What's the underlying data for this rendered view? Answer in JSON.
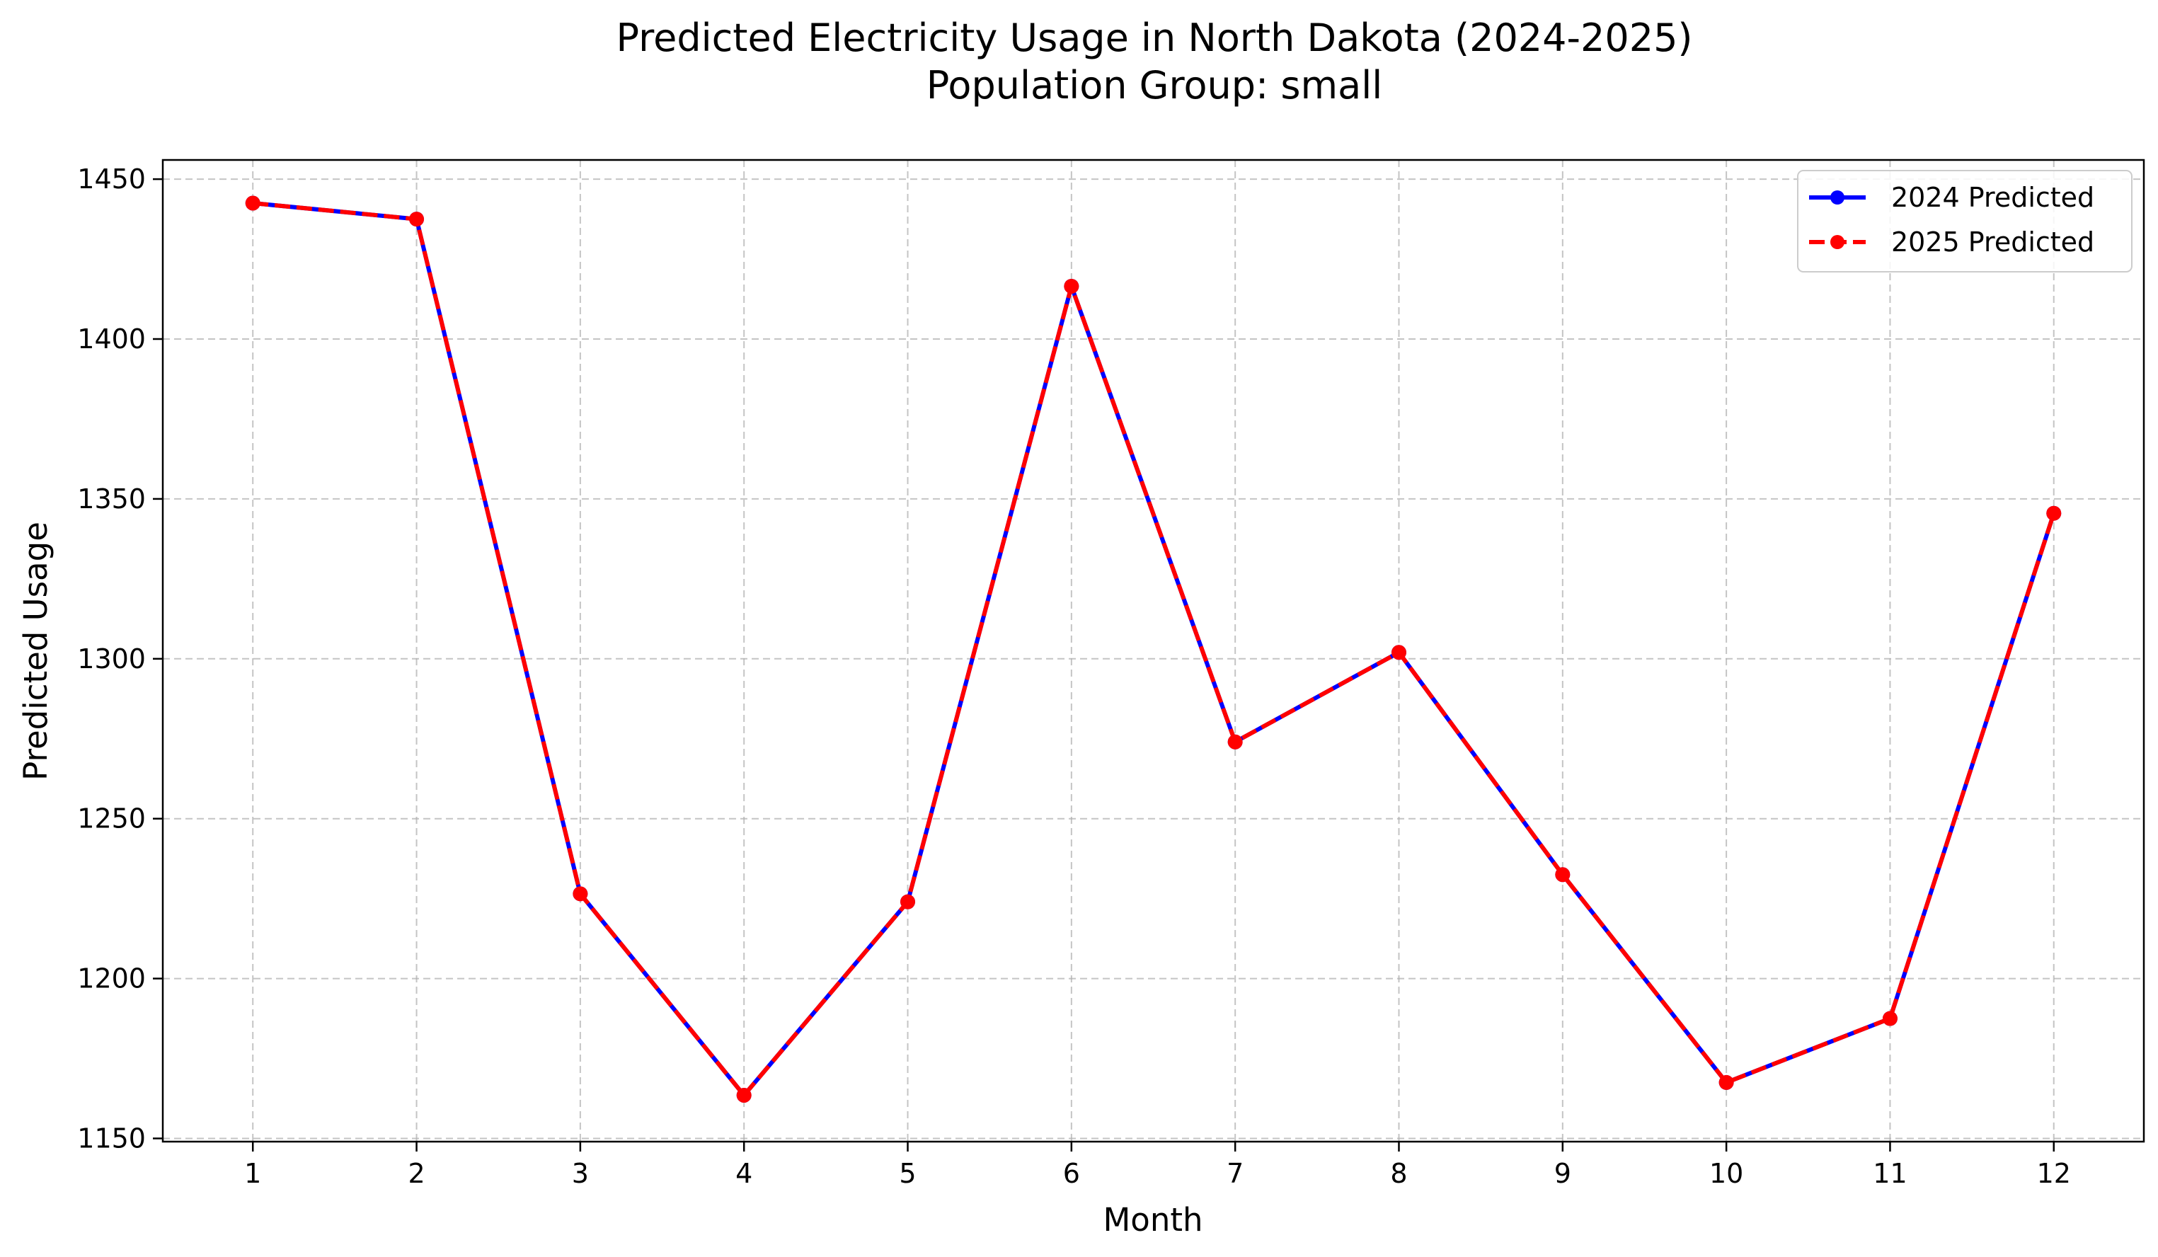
{
  "chart_data": {
    "type": "line",
    "title": "Predicted Electricity Usage in North Dakota (2024-2025)",
    "subtitle": "Population Group: small",
    "xlabel": "Month",
    "ylabel": "Predicted Usage",
    "x": [
      1,
      2,
      3,
      4,
      5,
      6,
      7,
      8,
      9,
      10,
      11,
      12
    ],
    "xlim": [
      0.45,
      12.55
    ],
    "ylim": [
      1149,
      1456
    ],
    "yticks": [
      1150,
      1200,
      1250,
      1300,
      1350,
      1400,
      1450
    ],
    "grid": true,
    "legend_position": "upper-right",
    "series": [
      {
        "name": "2024 Predicted",
        "color": "#0000ff",
        "line_style": "solid",
        "marker": "circle",
        "values": [
          1442.5,
          1437.5,
          1226.5,
          1163.5,
          1224,
          1416.5,
          1274,
          1302,
          1232.5,
          1167.5,
          1187.5,
          1345.5
        ]
      },
      {
        "name": "2025 Predicted",
        "color": "#ff0000",
        "line_style": "dashed",
        "marker": "circle",
        "values": [
          1442.5,
          1437.5,
          1226.5,
          1163.5,
          1224,
          1416.5,
          1274,
          1302,
          1232.5,
          1167.5,
          1187.5,
          1345.5
        ]
      }
    ]
  }
}
